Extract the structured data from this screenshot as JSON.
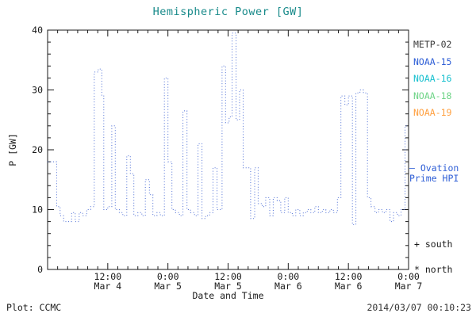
{
  "colors": {
    "title": "#188a8a",
    "axis": "#1a1a1a",
    "line": "#4e6fd6",
    "ovation": "#2f5fd6"
  },
  "legend": {
    "satellites": [
      {
        "label": "METP-02",
        "color": "#3a3a3a"
      },
      {
        "label": "NOAA-15",
        "color": "#2f5fd6"
      },
      {
        "label": "NOAA-16",
        "color": "#18c0cf"
      },
      {
        "label": "NOAA-18",
        "color": "#6fd487"
      },
      {
        "label": "NOAA-19",
        "color": "#ffa040"
      }
    ],
    "ovation_line1": "– Ovation",
    "ovation_line2": "Prime HPI",
    "south_marker": "+ south",
    "north_marker": "* north"
  },
  "footer": {
    "left": "Plot: CCMC",
    "right": "2014/03/07 00:10:23"
  },
  "chart_data": {
    "type": "line",
    "title": "Hemispheric Power [GW]",
    "xlabel": "Date and Time",
    "ylabel": "P [GW]",
    "ylim": [
      0,
      40
    ],
    "xlim_hours": [
      0,
      72
    ],
    "x_unit": "hours from Mar 4 0:00",
    "step": true,
    "line_style": "dotted",
    "grid": false,
    "y_ticks": [
      0,
      10,
      20,
      30,
      40
    ],
    "x_ticks": [
      {
        "hour": 12,
        "time": "12:00",
        "date": "Mar 4"
      },
      {
        "hour": 24,
        "time": "0:00",
        "date": "Mar 5"
      },
      {
        "hour": 36,
        "time": "12:00",
        "date": "Mar 5"
      },
      {
        "hour": 48,
        "time": "0:00",
        "date": "Mar 6"
      },
      {
        "hour": 60,
        "time": "12:00",
        "date": "Mar 6"
      },
      {
        "hour": 72,
        "time": "0:00",
        "date": "Mar 7"
      }
    ],
    "series": [
      {
        "name": "Ovation Prime HPI",
        "x_hours": [
          0.0,
          1.8,
          2.5,
          3.2,
          4.0,
          4.8,
          5.5,
          6.3,
          7.0,
          7.8,
          8.6,
          9.3,
          10.1,
          10.8,
          11.2,
          12.0,
          12.8,
          13.5,
          14.3,
          15.0,
          15.8,
          16.5,
          17.2,
          18.0,
          18.8,
          19.5,
          20.3,
          21.0,
          21.8,
          22.5,
          23.3,
          24.0,
          24.8,
          25.5,
          26.3,
          27.0,
          27.8,
          28.5,
          29.3,
          30.0,
          30.8,
          31.5,
          32.3,
          33.0,
          33.8,
          34.8,
          35.5,
          36.2,
          36.8,
          37.6,
          38.3,
          39.0,
          39.8,
          40.5,
          41.3,
          42.0,
          42.8,
          43.5,
          44.3,
          45.0,
          45.8,
          46.5,
          47.3,
          48.0,
          48.8,
          49.5,
          50.3,
          51.0,
          51.8,
          52.5,
          53.3,
          54.0,
          54.8,
          55.5,
          56.3,
          57.0,
          57.8,
          58.5,
          59.3,
          60.0,
          60.8,
          61.5,
          62.3,
          63.0,
          63.8,
          64.5,
          65.3,
          66.0,
          66.8,
          67.5,
          68.3,
          69.0,
          69.8,
          70.5,
          71.3,
          72.0
        ],
        "values": [
          18,
          10.5,
          9,
          8,
          8,
          9.5,
          8,
          9.5,
          9,
          10,
          10.5,
          33,
          33.5,
          29,
          10,
          10.5,
          24,
          10,
          9.5,
          9,
          19,
          16,
          9,
          9.5,
          9,
          15,
          12.5,
          9,
          9.5,
          9,
          32,
          18,
          10,
          9.5,
          9,
          26.5,
          10,
          9.5,
          9,
          21,
          8.5,
          9,
          9.5,
          17,
          10,
          34,
          24.5,
          25.5,
          39.5,
          25,
          30,
          17,
          17,
          8.5,
          17,
          11,
          10.5,
          12,
          9,
          12,
          11.5,
          9.5,
          12,
          9.5,
          9,
          10,
          9,
          9.5,
          10,
          9.5,
          10.5,
          9.5,
          10,
          9.5,
          10,
          9.5,
          12,
          29,
          27.5,
          29,
          7.5,
          29.5,
          30,
          29.5,
          12,
          10.5,
          9.5,
          10,
          9.5,
          10,
          8,
          9.5,
          9,
          10,
          24,
          24
        ]
      }
    ]
  }
}
